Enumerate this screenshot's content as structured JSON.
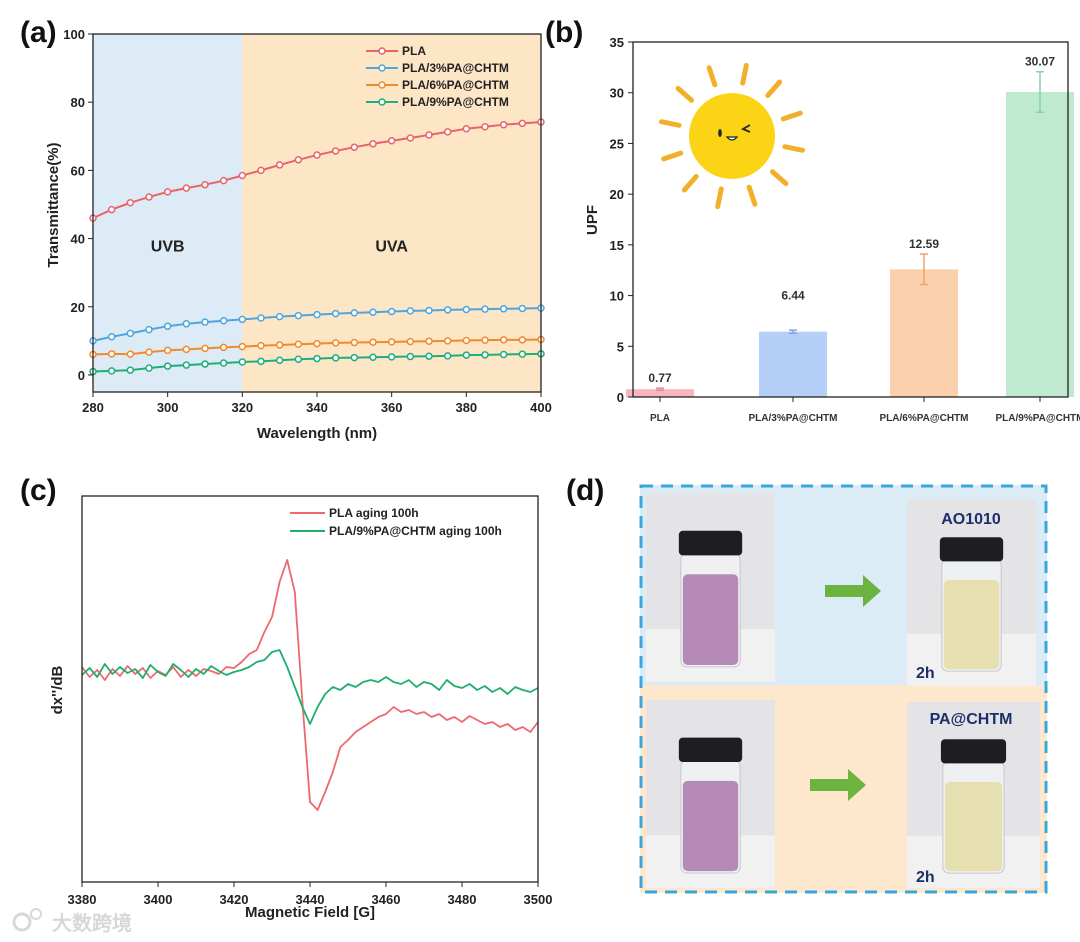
{
  "chart_data": [
    {
      "panel": "(a)",
      "type": "line",
      "xlabel": "Wavelength (nm)",
      "ylabel": "Transmittance(%)",
      "xlim": [
        280,
        400
      ],
      "ylim": [
        -5,
        100
      ],
      "xticks": [
        280,
        300,
        320,
        340,
        360,
        380,
        400
      ],
      "yticks": [
        0,
        20,
        40,
        60,
        80,
        100
      ],
      "legend_position": "top-right",
      "regions": [
        {
          "label": "UVB",
          "from": 280,
          "to": 320,
          "color": "#dcebf5"
        },
        {
          "label": "UVA",
          "from": 320,
          "to": 400,
          "color": "#fde6c6"
        }
      ],
      "x": [
        280,
        285,
        290,
        295,
        300,
        305,
        310,
        315,
        320,
        325,
        330,
        335,
        340,
        345,
        350,
        355,
        360,
        365,
        370,
        375,
        380,
        385,
        390,
        395,
        400
      ],
      "series": [
        {
          "name": "PLA",
          "color": "#e8646a",
          "values": [
            46,
            48.5,
            50.5,
            52.2,
            53.7,
            54.8,
            55.8,
            57,
            58.5,
            60,
            61.6,
            63.1,
            64.5,
            65.7,
            66.8,
            67.8,
            68.7,
            69.5,
            70.4,
            71.3,
            72.2,
            72.8,
            73.4,
            73.8,
            74.2
          ]
        },
        {
          "name": "PLA/3%PA@CHTM",
          "color": "#4ea6dc",
          "values": [
            10,
            11.2,
            12.2,
            13.3,
            14.3,
            15,
            15.5,
            15.9,
            16.3,
            16.7,
            17.1,
            17.4,
            17.7,
            18,
            18.2,
            18.4,
            18.6,
            18.8,
            18.9,
            19.1,
            19.2,
            19.3,
            19.4,
            19.5,
            19.6
          ]
        },
        {
          "name": "PLA/6%PA@CHTM",
          "color": "#f08a2c",
          "values": [
            6,
            6.2,
            6.1,
            6.7,
            7.2,
            7.5,
            7.8,
            8.1,
            8.3,
            8.6,
            8.8,
            9,
            9.2,
            9.4,
            9.5,
            9.6,
            9.7,
            9.8,
            9.9,
            10,
            10.1,
            10.2,
            10.3,
            10.3,
            10.4
          ]
        },
        {
          "name": "PLA/9%PA@CHTM",
          "color": "#1fae7a",
          "values": [
            1,
            1.2,
            1.4,
            2,
            2.6,
            2.9,
            3.2,
            3.5,
            3.8,
            4,
            4.3,
            4.6,
            4.8,
            5,
            5.1,
            5.2,
            5.3,
            5.4,
            5.5,
            5.6,
            5.8,
            5.9,
            6,
            6.1,
            6.2
          ]
        }
      ]
    },
    {
      "panel": "(b)",
      "type": "bar",
      "ylabel": "UPF",
      "xlabel": "",
      "ylim": [
        0,
        35
      ],
      "yticks": [
        0,
        5,
        10,
        15,
        20,
        25,
        30,
        35
      ],
      "categories": [
        "PLA",
        "PLA/3%PA@CHTM",
        "PLA/6%PA@CHTM",
        "PLA/9%PA@CHTM"
      ],
      "values": [
        0.77,
        6.44,
        12.59,
        30.07
      ],
      "value_labels": [
        "0.77",
        "6.44",
        "12.59",
        "30.07"
      ],
      "errors": [
        0.1,
        0.15,
        1.5,
        2.0
      ],
      "colors": [
        "#f7b6bd",
        "#b5cff8",
        "#fbd0ad",
        "#bfeacf"
      ],
      "error_colors": [
        "#e58a95",
        "#7aa6ea",
        "#f0a070",
        "#86d3a6"
      ],
      "decoration": "sun-icon"
    },
    {
      "panel": "(c)",
      "type": "line",
      "xlabel": "Magnetic Field [G]",
      "ylabel": "dx''/dB",
      "xlim": [
        3380,
        3500
      ],
      "ylim": [
        -2.1,
        1.76
      ],
      "xticks": [
        3380,
        3400,
        3420,
        3440,
        3460,
        3480,
        3500
      ],
      "legend_position": "top-right",
      "x_start": 3380,
      "x_step": 2,
      "series": [
        {
          "name": "PLA aging 100h",
          "color": "#ec6a6e",
          "values": [
            0.05,
            -0.05,
            0.02,
            -0.08,
            0.03,
            -0.04,
            0.06,
            -0.02,
            0.04,
            -0.06,
            0.01,
            -0.03,
            0.05,
            -0.05,
            0.02,
            -0.04,
            0.03,
            0.01,
            -0.02,
            0.05,
            0.04,
            0.1,
            0.18,
            0.22,
            0.4,
            0.55,
            0.9,
            1.12,
            0.8,
            -0.3,
            -1.3,
            -1.38,
            -1.2,
            -1.0,
            -0.75,
            -0.68,
            -0.6,
            -0.55,
            -0.5,
            -0.45,
            -0.42,
            -0.35,
            -0.4,
            -0.38,
            -0.42,
            -0.4,
            -0.45,
            -0.42,
            -0.48,
            -0.45,
            -0.5,
            -0.44,
            -0.48,
            -0.52,
            -0.5,
            -0.55,
            -0.52,
            -0.58,
            -0.55,
            -0.6,
            -0.5
          ]
        },
        {
          "name": "PLA/9%PA@CHTM aging 100h",
          "color": "#1fae6e",
          "values": [
            -0.03,
            0.04,
            -0.05,
            0.08,
            -0.02,
            0.05,
            -0.01,
            0.03,
            -0.06,
            0.07,
            0.0,
            -0.04,
            0.08,
            0.02,
            -0.05,
            0.03,
            -0.02,
            0.06,
            0.01,
            -0.03,
            0.0,
            0.02,
            0.05,
            0.1,
            0.12,
            0.2,
            0.22,
            0.05,
            -0.15,
            -0.35,
            -0.52,
            -0.35,
            -0.22,
            -0.15,
            -0.18,
            -0.12,
            -0.15,
            -0.1,
            -0.08,
            -0.1,
            -0.05,
            -0.1,
            -0.12,
            -0.08,
            -0.15,
            -0.1,
            -0.12,
            -0.18,
            -0.08,
            -0.14,
            -0.16,
            -0.12,
            -0.18,
            -0.14,
            -0.2,
            -0.16,
            -0.22,
            -0.15,
            -0.18,
            -0.2,
            -0.16
          ]
        }
      ]
    }
  ],
  "panel_d": {
    "panel": "(d)",
    "top_label": "AO1010",
    "bottom_label": "PA@CHTM",
    "time_top": "2h",
    "time_bottom": "2h",
    "colors": {
      "top_bg": "#dcecf6",
      "bottom_bg": "#fde8cd",
      "border": "#3aa6de",
      "arrow": "#6db33f",
      "purple": "#b68ab6",
      "yellow": "#e6dfb0"
    }
  },
  "watermark": "大数跨境"
}
